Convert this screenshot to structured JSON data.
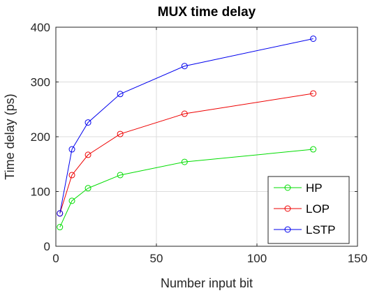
{
  "chart_data": {
    "type": "line",
    "title": "MUX time delay",
    "xlabel": "Number input bit",
    "ylabel": "Time delay (ps)",
    "xlim": [
      0,
      150
    ],
    "ylim": [
      0,
      400
    ],
    "xticks": [
      0,
      50,
      100,
      150
    ],
    "yticks": [
      0,
      100,
      200,
      300,
      400
    ],
    "grid": true,
    "legend_position": "bottom-right",
    "x": [
      2,
      8,
      16,
      32,
      64,
      128
    ],
    "series": [
      {
        "name": "HP",
        "color": "#00dd00",
        "marker": "circle",
        "values": [
          35,
          83,
          106,
          130,
          154,
          177
        ]
      },
      {
        "name": "LOP",
        "color": "#ee0000",
        "marker": "circle",
        "values": [
          60,
          130,
          167,
          205,
          242,
          279
        ]
      },
      {
        "name": "LSTP",
        "color": "#0000ee",
        "marker": "circle",
        "values": [
          60,
          177,
          226,
          278,
          329,
          379
        ]
      }
    ]
  }
}
